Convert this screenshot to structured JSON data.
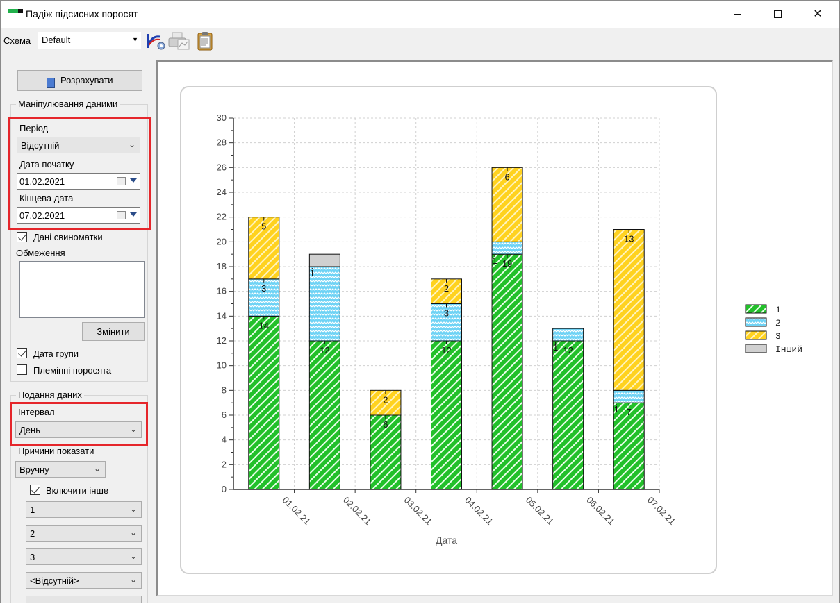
{
  "window": {
    "title": "Падіж підсисних поросят"
  },
  "toolbar": {
    "scheme_label": "Схема",
    "scheme_value": "Default",
    "icons": [
      "chart-settings-icon",
      "print-preview-icon",
      "clipboard-icon"
    ]
  },
  "left": {
    "calc_button": "Розрахувати",
    "data_group": "Маніпулювання даними",
    "period_label": "Період",
    "period_value": "Відсутній",
    "start_label": "Дата початку",
    "start_value": "01.02.2021",
    "end_label": "Кінцева дата",
    "end_value": "07.02.2021",
    "sow_data_label": "Дані свиноматки",
    "sow_data_checked": true,
    "limits_label": "Обмеження",
    "change_button": "Змінити",
    "group_date_label": "Дата групи",
    "group_date_checked": true,
    "breeding_label": "Племінні поросята",
    "breeding_checked": false,
    "view_group": "Подання даних",
    "interval_label": "Інтервал",
    "interval_value": "День",
    "reasons_label": "Причини показати",
    "reasons_value": "Вручну",
    "include_other_label": "Включити інше",
    "include_other_checked": true,
    "reason_1": "1",
    "reason_2": "2",
    "reason_3": "3",
    "reason_4": "<Відсутній>"
  },
  "chart_data": {
    "type": "bar",
    "stacked": true,
    "xlabel": "Дата",
    "ylabel": "",
    "ylim": [
      0,
      30
    ],
    "ytick_step": 2,
    "xticks": [
      "01.02.21",
      "02.02.21",
      "03.02.21",
      "04.02.21",
      "05.02.21",
      "06.02.21",
      "07.02.21"
    ],
    "categories": [
      "01.02.21",
      "02.02.21",
      "03.02.21",
      "04.02.21",
      "05.02.21",
      "06.02.21",
      "07.02.21"
    ],
    "legend_position": "right",
    "grid": true,
    "series": [
      {
        "name": "1",
        "color": "#22c02a",
        "values": [
          14,
          12,
          6,
          12,
          19,
          12,
          7
        ]
      },
      {
        "name": "2",
        "color": "#6fd3f5",
        "values": [
          3,
          6,
          0,
          3,
          1,
          1,
          1
        ]
      },
      {
        "name": "3",
        "color": "#ffd21f",
        "values": [
          5,
          0,
          2,
          2,
          6,
          0,
          13
        ]
      },
      {
        "name": "Інший",
        "color": "#d0d0d0",
        "values": [
          0,
          1,
          0,
          0,
          0,
          0,
          0
        ]
      }
    ],
    "data_labels": [
      [
        "14",
        "3",
        "5",
        null
      ],
      [
        "12",
        null,
        null,
        "1"
      ],
      [
        "6",
        null,
        "2",
        null
      ],
      [
        "12",
        "3",
        "2",
        null
      ],
      [
        "19",
        "1",
        "6",
        null
      ],
      [
        "12",
        "1",
        null,
        null
      ],
      [
        "7",
        "1",
        "13",
        null
      ]
    ]
  }
}
